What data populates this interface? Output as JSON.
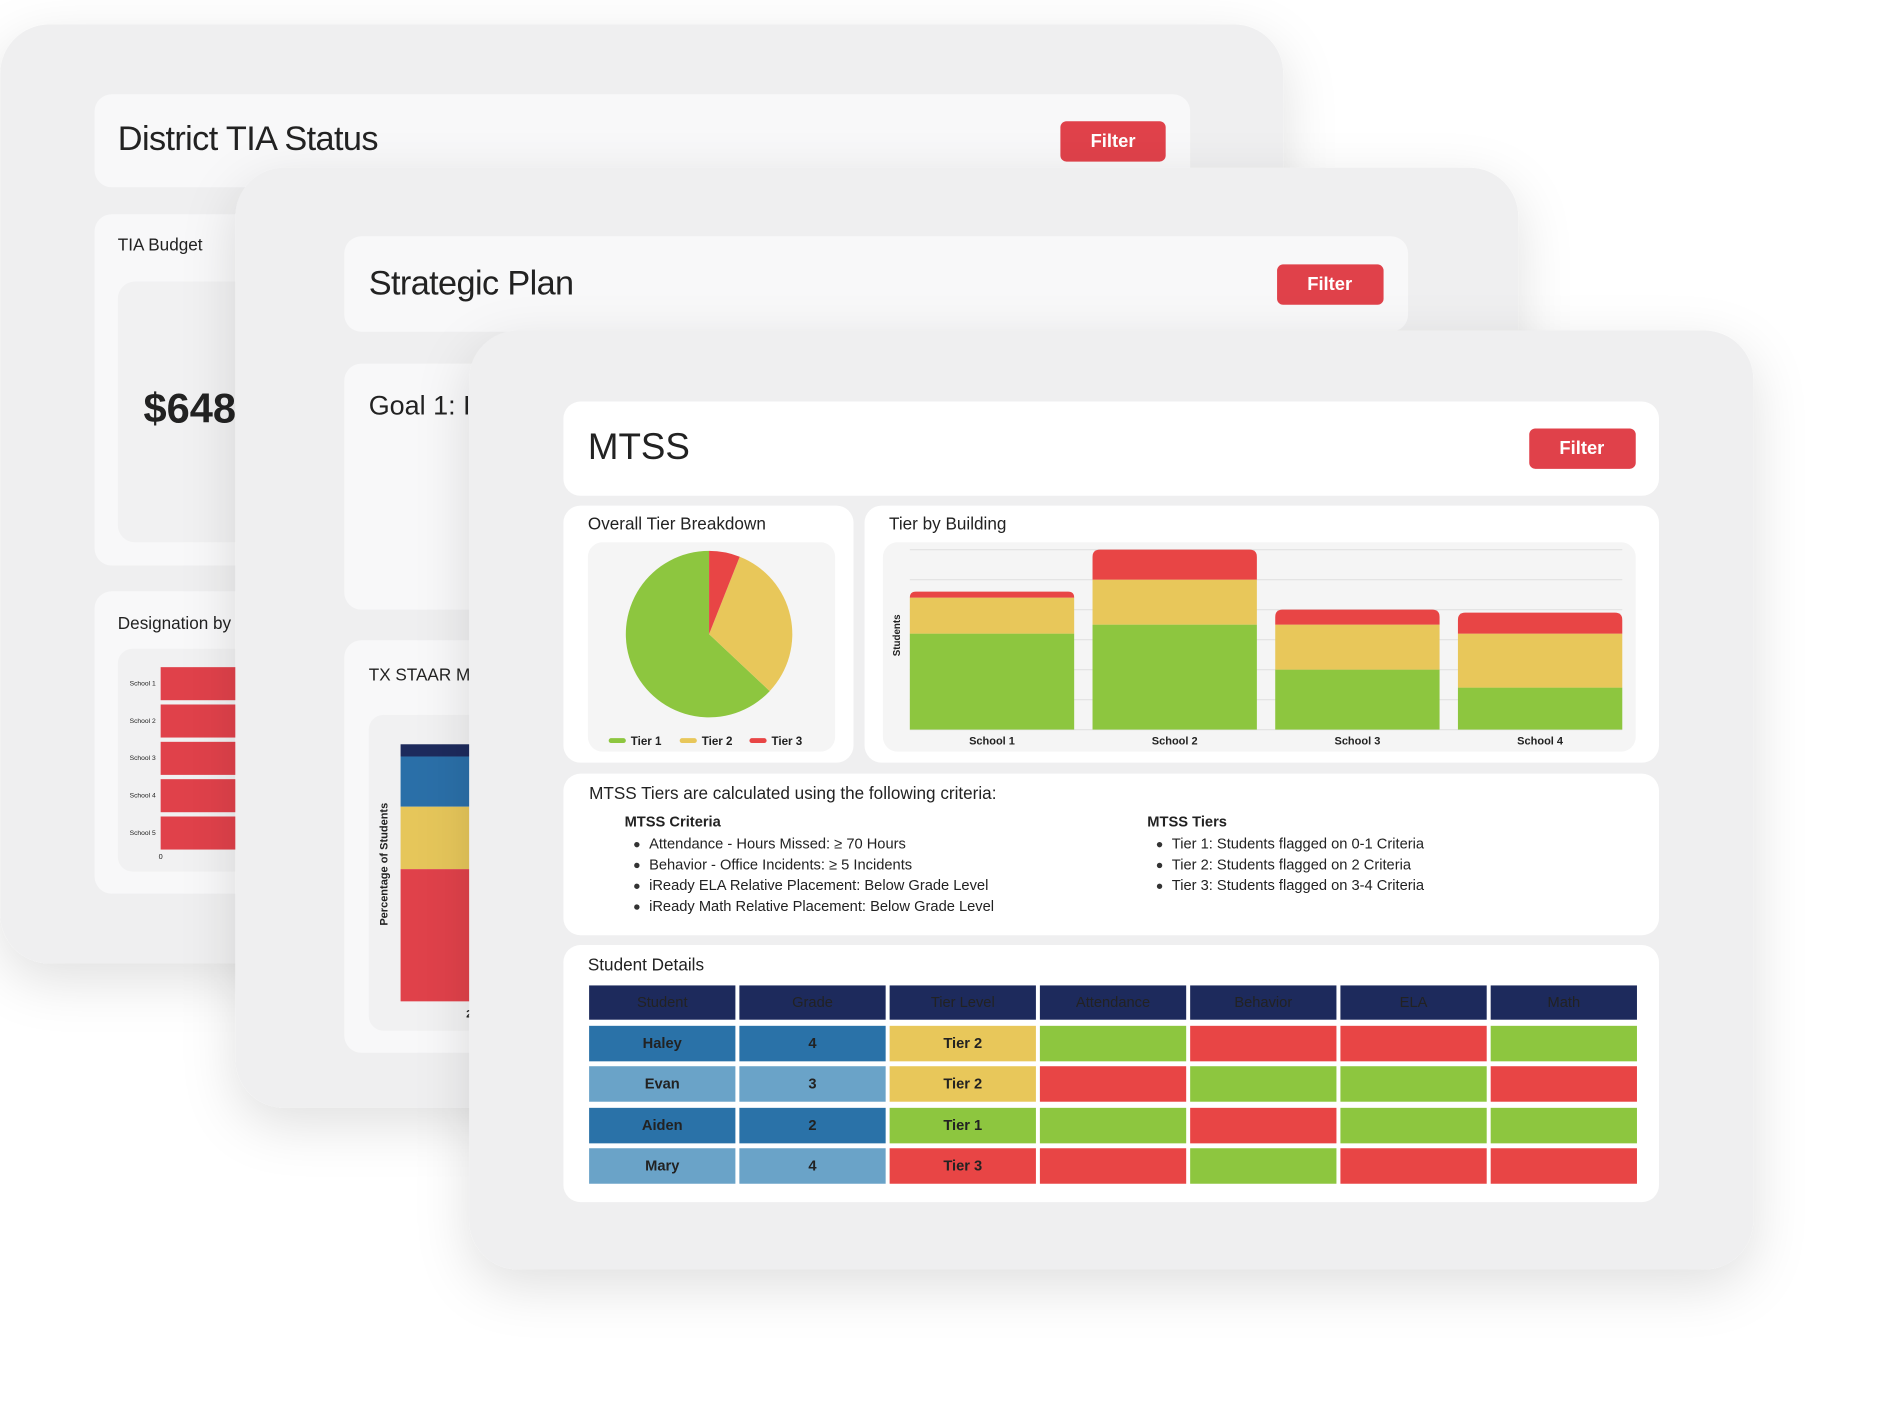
{
  "district_tia": {
    "title": "District TIA Status",
    "filter": "Filter",
    "budget_title": "TIA Budget",
    "budget_value": "$648",
    "designation_title": "Designation by",
    "designation_chart": {
      "categories": [
        "School 1",
        "School 2",
        "School 3",
        "School 4",
        "School 5"
      ],
      "xticks": [
        0
      ],
      "color": "#e0414a"
    }
  },
  "strategic_plan": {
    "title": "Strategic Plan",
    "filter": "Filter",
    "goal_title": "Goal 1: I",
    "staar_title": "TX STAAR M",
    "staar_chart": {
      "y_label": "Percentage of Students",
      "x_label_fragment": "2",
      "colors": [
        "#1d2a5c",
        "#2a6fa8",
        "#e6c65a",
        "#e0414a"
      ]
    }
  },
  "mtss": {
    "title": "MTSS",
    "filter": "Filter",
    "chart_data": [
      {
        "type": "pie",
        "title": "Overall Tier Breakdown",
        "categories": [
          "Tier 1",
          "Tier 2",
          "Tier 3"
        ],
        "values": [
          63,
          31,
          6
        ],
        "colors": [
          "#8dc63f",
          "#e8c75a",
          "#e84545"
        ],
        "legend": "bottom"
      },
      {
        "type": "bar",
        "title": "Tier by Building",
        "y_label": "Students",
        "categories": [
          "School 1",
          "School 2",
          "School 3",
          "School 4"
        ],
        "stacked": true,
        "ylim": [
          0,
          6
        ],
        "grid_lines": [
          0,
          1,
          2,
          3,
          4,
          5,
          6
        ],
        "series": [
          {
            "color": "#8dc63f",
            "values": [
              3.2,
              3.5,
              2.0,
              1.4
            ]
          },
          {
            "color": "#e8c75a",
            "values": [
              1.2,
              1.5,
              1.5,
              1.8
            ]
          },
          {
            "color": "#e84545",
            "values": [
              0.2,
              1.0,
              0.5,
              0.7
            ]
          }
        ]
      }
    ],
    "criteria": {
      "heading": "MTSS Tiers are calculated using the following criteria:",
      "criteria_title": "MTSS Criteria",
      "criteria_items": [
        "Attendance - Hours Missed: ≥ 70 Hours",
        "Behavior - Office Incidents: ≥ 5 Incidents",
        "iReady ELA Relative Placement: Below Grade Level",
        "iReady Math Relative Placement: Below Grade Level"
      ],
      "tiers_title": "MTSS Tiers",
      "tiers_items": [
        "Tier 1: Students flagged on 0-1 Criteria",
        "Tier 2: Students flagged on 2 Criteria",
        "Tier 3: Students flagged on 3-4 Criteria"
      ]
    },
    "table": {
      "title": "Student Details",
      "columns": [
        "Student",
        "Grade",
        "Tier Level",
        "Attendance",
        "Behavior",
        "ELA",
        "Math"
      ],
      "rows": [
        {
          "student": "Haley",
          "grade": 4,
          "tier": "Tier 2",
          "tier_color": "#e8c75a",
          "flags": [
            "#8dc63f",
            "#e84545",
            "#e84545",
            "#8dc63f"
          ]
        },
        {
          "student": "Evan",
          "grade": 3,
          "tier": "Tier 2",
          "tier_color": "#e8c75a",
          "flags": [
            "#e84545",
            "#8dc63f",
            "#8dc63f",
            "#e84545"
          ]
        },
        {
          "student": "Aiden",
          "grade": 2,
          "tier": "Tier 1",
          "tier_color": "#8dc63f",
          "flags": [
            "#8dc63f",
            "#e84545",
            "#8dc63f",
            "#8dc63f"
          ]
        },
        {
          "student": "Mary",
          "grade": 4,
          "tier": "Tier 3",
          "tier_color": "#e84545",
          "flags": [
            "#e84545",
            "#8dc63f",
            "#e84545",
            "#e84545"
          ]
        }
      ]
    }
  }
}
